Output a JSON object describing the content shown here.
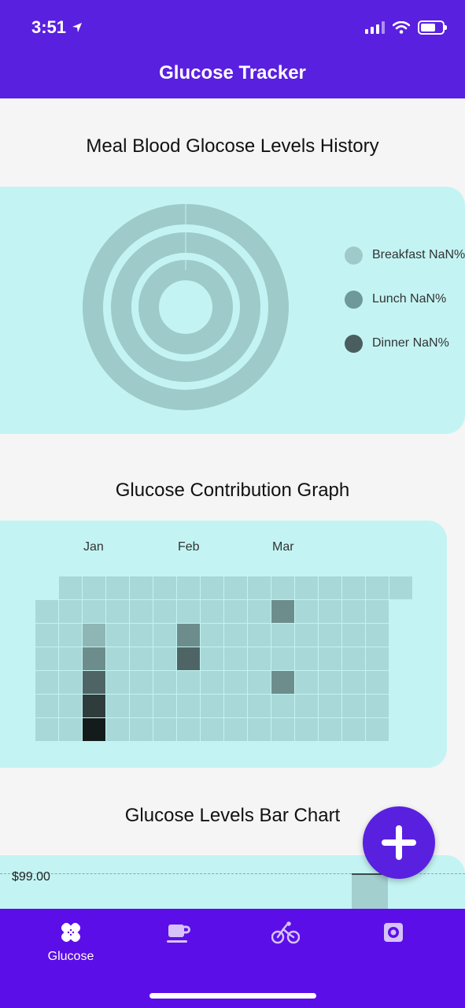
{
  "status_bar": {
    "time": "3:51"
  },
  "header": {
    "title": "Glucose Tracker"
  },
  "pie_section": {
    "title": "Meal Blood Glocose Levels History",
    "legend": [
      {
        "label": "Breakfast NaN%",
        "color": "#9ecac9"
      },
      {
        "label": "Lunch NaN%",
        "color": "#6f9898"
      },
      {
        "label": "Dinner NaN%",
        "color": "#4a5e60"
      }
    ]
  },
  "contribution_section": {
    "title": "Glucose Contribution Graph",
    "months": [
      "Jan",
      "Feb",
      "Mar"
    ],
    "cell_colors": {
      "empty": "#a8d8d8",
      "level1": "#8fb6b5",
      "level2": "#6d8d8c",
      "level3": "#4f6565",
      "level4": "#2f3c3c",
      "level5": "#141b1b"
    },
    "highlighted": [
      {
        "col": 2,
        "row": 2,
        "level": "level1"
      },
      {
        "col": 2,
        "row": 3,
        "level": "level2"
      },
      {
        "col": 2,
        "row": 4,
        "level": "level3"
      },
      {
        "col": 2,
        "row": 5,
        "level": "level4"
      },
      {
        "col": 2,
        "row": 6,
        "level": "level5"
      },
      {
        "col": 6,
        "row": 2,
        "level": "level2"
      },
      {
        "col": 6,
        "row": 3,
        "level": "level3"
      },
      {
        "col": 10,
        "row": 1,
        "level": "level2"
      },
      {
        "col": 10,
        "row": 4,
        "level": "level2"
      }
    ]
  },
  "bar_section": {
    "title": "Glucose Levels Bar Chart",
    "axis_label": "$99.00"
  },
  "fab": {
    "icon": "plus-icon"
  },
  "tabs": [
    {
      "label": "Glucose",
      "icon": "bandage-icon"
    },
    {
      "label": "",
      "icon": "coffee-cup-icon"
    },
    {
      "label": "",
      "icon": "bicycle-icon"
    },
    {
      "label": "",
      "icon": "gear-icon"
    }
  ],
  "colors": {
    "brand": "#5a20e0",
    "card": "#c3f4f3"
  }
}
